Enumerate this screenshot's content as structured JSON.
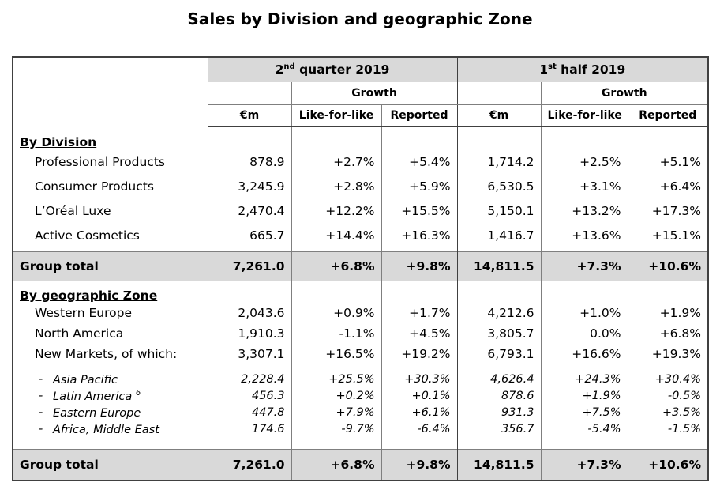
{
  "title": "Sales by Division and geographic Zone",
  "header": {
    "q2_main": "2",
    "q2_sup": "nd",
    "q2_rest": " quarter 2019",
    "h1_main": "1",
    "h1_sup": "st",
    "h1_rest": " half 2019",
    "growth": "Growth",
    "col_em": "€m",
    "col_lfl": "Like-for-like",
    "col_rep": "Reported"
  },
  "by_division": {
    "label": "By Division",
    "rows": [
      {
        "name": "Professional Products",
        "q_em": "878.9",
        "q_lfl": "+2.7%",
        "q_rep": "+5.4%",
        "h_em": "1,714.2",
        "h_lfl": "+2.5%",
        "h_rep": "+5.1%"
      },
      {
        "name": "Consumer Products",
        "q_em": "3,245.9",
        "q_lfl": "+2.8%",
        "q_rep": "+5.9%",
        "h_em": "6,530.5",
        "h_lfl": "+3.1%",
        "h_rep": "+6.4%"
      },
      {
        "name": "L’Oréal Luxe",
        "q_em": "2,470.4",
        "q_lfl": "+12.2%",
        "q_rep": "+15.5%",
        "h_em": "5,150.1",
        "h_lfl": "+13.2%",
        "h_rep": "+17.3%"
      },
      {
        "name": "Active Cosmetics",
        "q_em": "665.7",
        "q_lfl": "+14.4%",
        "q_rep": "+16.3%",
        "h_em": "1,416.7",
        "h_lfl": "+13.6%",
        "h_rep": "+15.1%"
      }
    ],
    "total": {
      "name": "Group total",
      "q_em": "7,261.0",
      "q_lfl": "+6.8%",
      "q_rep": "+9.8%",
      "h_em": "14,811.5",
      "h_lfl": "+7.3%",
      "h_rep": "+10.6%"
    }
  },
  "by_zone": {
    "label": "By geographic Zone",
    "rows": [
      {
        "name": "Western Europe",
        "q_em": "2,043.6",
        "q_lfl": "+0.9%",
        "q_rep": "+1.7%",
        "h_em": "4,212.6",
        "h_lfl": "+1.0%",
        "h_rep": "+1.9%"
      },
      {
        "name": "North America",
        "q_em": "1,910.3",
        "q_lfl": "-1.1%",
        "q_rep": "+4.5%",
        "h_em": "3,805.7",
        "h_lfl": "0.0%",
        "h_rep": "+6.8%"
      },
      {
        "name": "New Markets, of which:",
        "q_em": "3,307.1",
        "q_lfl": "+16.5%",
        "q_rep": "+19.2%",
        "h_em": "6,793.1",
        "h_lfl": "+16.6%",
        "h_rep": "+19.3%"
      }
    ],
    "subrows": [
      {
        "dash": "-",
        "name": "Asia Pacific",
        "sup": "",
        "q_em": "2,228.4",
        "q_lfl": "+25.5%",
        "q_rep": "+30.3%",
        "h_em": "4,626.4",
        "h_lfl": "+24.3%",
        "h_rep": "+30.4%"
      },
      {
        "dash": "-",
        "name": "Latin America ",
        "sup": "6",
        "q_em": "456.3",
        "q_lfl": "+0.2%",
        "q_rep": "+0.1%",
        "h_em": "878.6",
        "h_lfl": "+1.9%",
        "h_rep": "-0.5%"
      },
      {
        "dash": "-",
        "name": "Eastern Europe",
        "sup": "",
        "q_em": "447.8",
        "q_lfl": "+7.9%",
        "q_rep": "+6.1%",
        "h_em": "931.3",
        "h_lfl": "+7.5%",
        "h_rep": "+3.5%"
      },
      {
        "dash": "-",
        "name": "Africa, Middle East",
        "sup": "",
        "q_em": "174.6",
        "q_lfl": "-9.7%",
        "q_rep": "-6.4%",
        "h_em": "356.7",
        "h_lfl": "-5.4%",
        "h_rep": "-1.5%"
      }
    ],
    "total": {
      "name": "Group total",
      "q_em": "7,261.0",
      "q_lfl": "+6.8%",
      "q_rep": "+9.8%",
      "h_em": "14,811.5",
      "h_lfl": "+7.3%",
      "h_rep": "+10.6%"
    }
  }
}
